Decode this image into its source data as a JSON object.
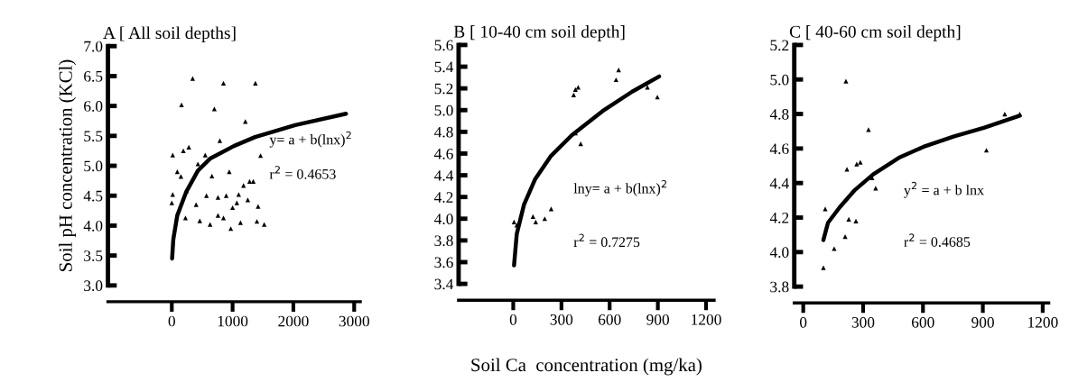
{
  "chart_data": [
    {
      "type": "scatter",
      "title": "A [ All soil depths]",
      "ylabel": "Soil pH concentration (KCl)",
      "grid": false,
      "xlim": [
        -1050,
        3100
      ],
      "xticks": [
        0,
        1000,
        2000,
        3000
      ],
      "ylim": [
        3.0,
        7.0
      ],
      "yticks": [
        {
          "value": 3,
          "label": "3.0"
        },
        3.5,
        {
          "value": 4,
          "label": "4.0"
        },
        4.5,
        {
          "value": 5,
          "label": "5.0"
        },
        5.5,
        {
          "value": 6,
          "label": "6.0"
        },
        6.5,
        {
          "value": 7,
          "label": "7.0"
        }
      ],
      "annotations": [
        "y= a + b(lnx)$^{2}$",
        "r$^{2}$ = 0.4653"
      ],
      "series": [
        {
          "marker": "triangle",
          "color": "#000000",
          "x": [
            343,
            850,
            1375,
            160,
            700,
            1210,
            790,
            15,
            190,
            280,
            550,
            1460,
            90,
            150,
            430,
            660,
            945,
            15,
            0,
            240,
            570,
            760,
            895,
            1100,
            1180,
            1280,
            1340,
            225,
            400,
            460,
            630,
            760,
            850,
            970,
            1130,
            1000,
            1070,
            1250,
            1420,
            1400,
            1520
          ],
          "values": [
            6.46,
            6.38,
            6.38,
            6.02,
            5.95,
            5.74,
            5.42,
            5.18,
            5.25,
            5.31,
            5.18,
            5.17,
            4.9,
            4.82,
            5.03,
            4.83,
            4.9,
            4.52,
            4.38,
            4.58,
            4.5,
            4.47,
            4.5,
            4.52,
            4.67,
            4.74,
            4.74,
            4.13,
            4.35,
            4.08,
            4.02,
            4.17,
            4.13,
            3.95,
            4.05,
            4.3,
            4.38,
            4.43,
            4.32,
            4.07,
            4.02
          ]
        },
        {
          "type": "line",
          "color": "#000000",
          "x": [
            5,
            25,
            90,
            240,
            430,
            630,
            1020,
            1370,
            2030,
            2865
          ],
          "values": [
            3.45,
            3.77,
            4.17,
            4.57,
            4.92,
            5.12,
            5.33,
            5.48,
            5.68,
            5.87
          ]
        }
      ]
    },
    {
      "type": "scatter",
      "title": "B [ 10-40 cm soil depth]",
      "xlabel": "Soil Ca  concentration (mg/ka)",
      "grid": false,
      "xlim": [
        -340,
        1250
      ],
      "xticks": [
        0,
        300,
        600,
        900,
        1200
      ],
      "ylim": [
        3.4,
        5.6
      ],
      "yticks": [
        3.4,
        3.6,
        3.8,
        {
          "value": 4,
          "label": "4.0"
        },
        4.2,
        4.4,
        4.6,
        4.8,
        {
          "value": 5,
          "label": "5.0"
        },
        5.2,
        5.4,
        5.6
      ],
      "annotations": [
        "lny= a + b(lnx)$^{2}$",
        "r$^{2}$ = 0.7275"
      ],
      "series": [
        {
          "marker": "triangle",
          "color": "#000000",
          "x": [
            656,
            640,
            387,
            376,
            404,
            897,
            835,
            420,
            387,
            5,
            22,
            123,
            140,
            196,
            236
          ],
          "values": [
            5.37,
            5.28,
            5.19,
            5.14,
            5.21,
            5.12,
            5.21,
            4.69,
            4.79,
            3.97,
            3.94,
            4.02,
            3.97,
            4.0,
            4.09
          ]
        },
        {
          "type": "line",
          "color": "#000000",
          "x": [
            5,
            22,
            67,
            135,
            236,
            365,
            555,
            740,
            908
          ],
          "values": [
            3.57,
            3.86,
            4.13,
            4.36,
            4.58,
            4.77,
            4.99,
            5.17,
            5.31
          ]
        }
      ]
    },
    {
      "type": "scatter",
      "title": "C [ 40-60 cm soil depth]",
      "grid": false,
      "xlim": [
        -45,
        1230
      ],
      "xticks": [
        0,
        300,
        600,
        900,
        1200
      ],
      "ylim": [
        3.8,
        5.2
      ],
      "yticks": [
        3.8,
        {
          "value": 4,
          "label": "4.0"
        },
        4.2,
        4.4,
        4.6,
        4.8,
        {
          "value": 5,
          "label": "5.0"
        },
        5.2
      ],
      "annotations": [
        "y$^{2}$ = a + b lnx",
        "r$^{2}$ = 0.4685"
      ],
      "series": [
        {
          "marker": "triangle",
          "color": "#000000",
          "x": [
            214,
            327,
            219,
            268,
            286,
            345,
            363,
            110,
            228,
            264,
            210,
            155,
            101,
            918,
            1010,
            1085
          ],
          "values": [
            4.99,
            4.71,
            4.48,
            4.51,
            4.52,
            4.43,
            4.37,
            4.25,
            4.19,
            4.18,
            4.09,
            4.02,
            3.91,
            4.59,
            4.8,
            4.8
          ]
        },
        {
          "type": "line",
          "color": "#000000",
          "x": [
            101,
            124,
            183,
            259,
            350,
            485,
            603,
            756,
            905,
            1085
          ],
          "values": [
            4.07,
            4.17,
            4.26,
            4.36,
            4.45,
            4.55,
            4.61,
            4.67,
            4.72,
            4.79
          ]
        }
      ]
    }
  ]
}
